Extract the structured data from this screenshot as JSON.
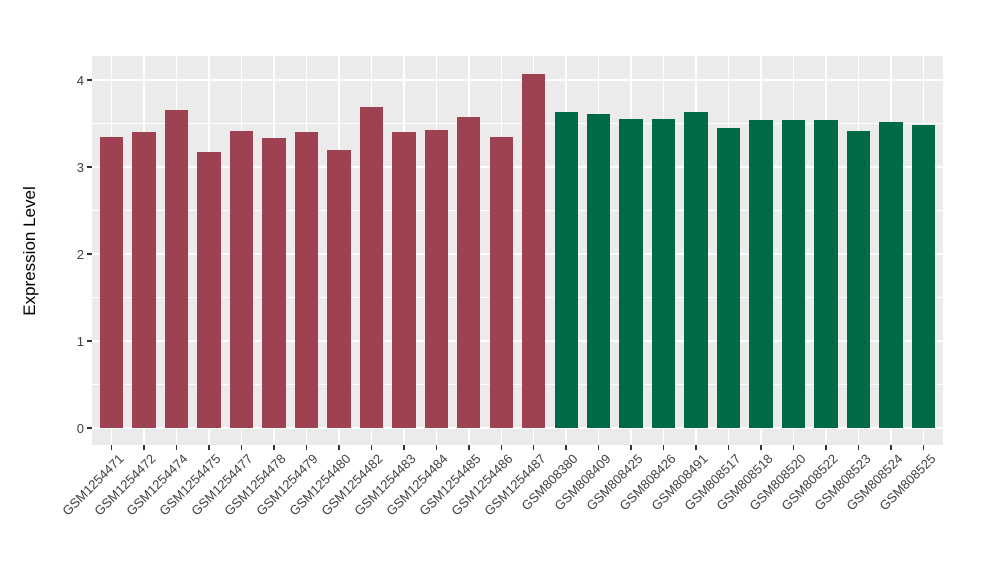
{
  "chart_data": {
    "type": "bar",
    "title": "",
    "xlabel": "",
    "ylabel": "Expression Level",
    "ylim": [
      0,
      4.27
    ],
    "yticks": [
      0,
      1,
      2,
      3,
      4
    ],
    "yminor": [
      0.5,
      1.5,
      2.5,
      3.5
    ],
    "grid": true,
    "legend_position": "none",
    "panel_background": "#EBEBEB",
    "grid_color": "#FFFFFF",
    "tick_label_color": "#404040",
    "axis_title_color": "#000000",
    "series": [
      {
        "name": "GSM1254471-GSM1254487",
        "color": "#9E4252",
        "bars": [
          {
            "label": "GSM1254471",
            "value": 3.34
          },
          {
            "label": "GSM1254472",
            "value": 3.4
          },
          {
            "label": "GSM1254474",
            "value": 3.66
          },
          {
            "label": "GSM1254475",
            "value": 3.17
          },
          {
            "label": "GSM1254477",
            "value": 3.41
          },
          {
            "label": "GSM1254478",
            "value": 3.33
          },
          {
            "label": "GSM1254479",
            "value": 3.4
          },
          {
            "label": "GSM1254480",
            "value": 3.2
          },
          {
            "label": "GSM1254482",
            "value": 3.69
          },
          {
            "label": "GSM1254483",
            "value": 3.4
          },
          {
            "label": "GSM1254484",
            "value": 3.42
          },
          {
            "label": "GSM1254485",
            "value": 3.57
          },
          {
            "label": "GSM1254486",
            "value": 3.35
          },
          {
            "label": "GSM1254487",
            "value": 4.07
          }
        ]
      },
      {
        "name": "GSM808380-GSM808525",
        "color": "#006946",
        "bars": [
          {
            "label": "GSM808380",
            "value": 3.63
          },
          {
            "label": "GSM808409",
            "value": 3.61
          },
          {
            "label": "GSM808425",
            "value": 3.55
          },
          {
            "label": "GSM808426",
            "value": 3.55
          },
          {
            "label": "GSM808491",
            "value": 3.63
          },
          {
            "label": "GSM808517",
            "value": 3.45
          },
          {
            "label": "GSM808518",
            "value": 3.54
          },
          {
            "label": "GSM808520",
            "value": 3.54
          },
          {
            "label": "GSM808522",
            "value": 3.54
          },
          {
            "label": "GSM808523",
            "value": 3.41
          },
          {
            "label": "GSM808524",
            "value": 3.52
          },
          {
            "label": "GSM808525",
            "value": 3.48
          }
        ]
      }
    ]
  }
}
